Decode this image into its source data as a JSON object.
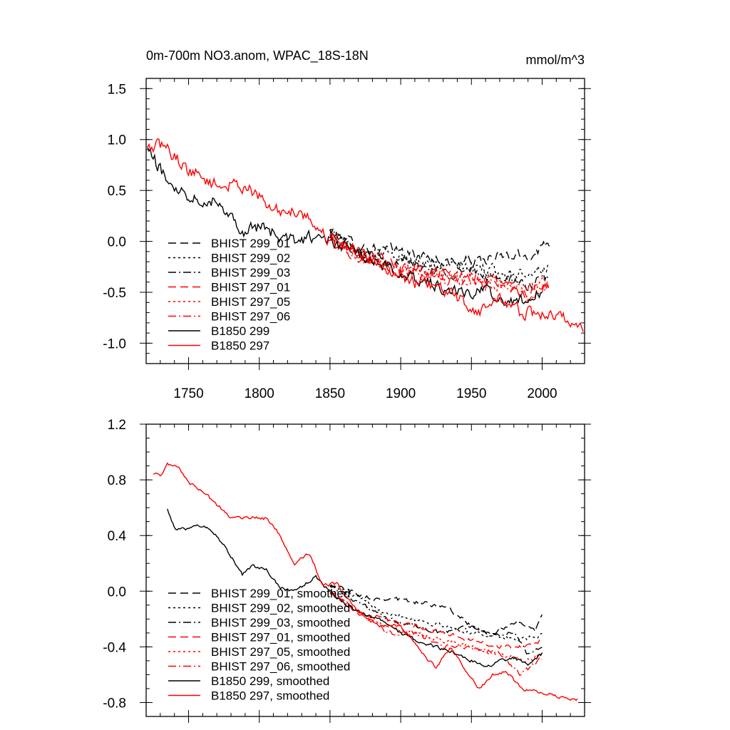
{
  "colors": {
    "black": "#000000",
    "red": "#ff0000"
  },
  "chart_data": [
    {
      "type": "line",
      "title": "0m-700m NO3.anom, WPAC_18S-18N",
      "units": "mmol/m^3",
      "xlim": [
        1720,
        2030
      ],
      "ylim": [
        -1.2,
        1.6
      ],
      "xticks": [
        1750,
        1800,
        1850,
        1900,
        1950,
        2000
      ],
      "yticks": [
        1.5,
        1.0,
        0.5,
        0.0,
        -0.5,
        -1.0
      ],
      "ytick_labels": [
        "1.5",
        "1.0",
        "0.5",
        "0.0",
        "-0.5",
        "-1.0"
      ],
      "legend_position": "bottom-left",
      "series": [
        {
          "name": "BHIST 299_01",
          "color": "#000000",
          "dash": "dash",
          "noise": 0.09,
          "points": [
            [
              1850,
              0.1
            ],
            [
              1870,
              -0.05
            ],
            [
              1900,
              -0.1
            ],
            [
              1930,
              -0.2
            ],
            [
              1950,
              -0.2
            ],
            [
              1970,
              -0.15
            ],
            [
              1990,
              -0.15
            ],
            [
              2005,
              0.0
            ]
          ]
        },
        {
          "name": "BHIST 299_02",
          "color": "#000000",
          "dash": "dot",
          "noise": 0.09,
          "points": [
            [
              1850,
              0.1
            ],
            [
              1870,
              -0.1
            ],
            [
              1900,
              -0.15
            ],
            [
              1930,
              -0.25
            ],
            [
              1950,
              -0.25
            ],
            [
              1970,
              -0.3
            ],
            [
              1990,
              -0.3
            ],
            [
              2005,
              -0.25
            ]
          ]
        },
        {
          "name": "BHIST 299_03",
          "color": "#000000",
          "dash": "dashdot",
          "noise": 0.09,
          "points": [
            [
              1850,
              0.1
            ],
            [
              1870,
              -0.1
            ],
            [
              1900,
              -0.2
            ],
            [
              1930,
              -0.3
            ],
            [
              1950,
              -0.3
            ],
            [
              1970,
              -0.35
            ],
            [
              1990,
              -0.45
            ],
            [
              2005,
              -0.35
            ]
          ]
        },
        {
          "name": "BHIST 297_01",
          "color": "#ff0000",
          "dash": "dash",
          "noise": 0.09,
          "points": [
            [
              1850,
              0.05
            ],
            [
              1870,
              -0.1
            ],
            [
              1900,
              -0.25
            ],
            [
              1930,
              -0.3
            ],
            [
              1950,
              -0.35
            ],
            [
              1970,
              -0.4
            ],
            [
              1990,
              -0.5
            ],
            [
              2005,
              -0.4
            ]
          ]
        },
        {
          "name": "BHIST 297_05",
          "color": "#ff0000",
          "dash": "dot",
          "noise": 0.09,
          "points": [
            [
              1850,
              0.05
            ],
            [
              1870,
              -0.15
            ],
            [
              1900,
              -0.25
            ],
            [
              1930,
              -0.35
            ],
            [
              1950,
              -0.4
            ],
            [
              1970,
              -0.45
            ],
            [
              1990,
              -0.45
            ],
            [
              2005,
              -0.4
            ]
          ]
        },
        {
          "name": "BHIST 297_06",
          "color": "#ff0000",
          "dash": "dashdot",
          "noise": 0.09,
          "points": [
            [
              1850,
              0.05
            ],
            [
              1870,
              -0.15
            ],
            [
              1900,
              -0.3
            ],
            [
              1930,
              -0.35
            ],
            [
              1950,
              -0.4
            ],
            [
              1970,
              -0.4
            ],
            [
              1990,
              -0.55
            ],
            [
              2005,
              -0.45
            ]
          ]
        },
        {
          "name": "B1850 299",
          "color": "#000000",
          "dash": "solid",
          "noise": 0.1,
          "points": [
            [
              1721,
              0.9
            ],
            [
              1735,
              0.6
            ],
            [
              1750,
              0.45
            ],
            [
              1770,
              0.4
            ],
            [
              1790,
              0.1
            ],
            [
              1800,
              0.15
            ],
            [
              1820,
              0.0
            ],
            [
              1840,
              0.05
            ],
            [
              1860,
              -0.05
            ],
            [
              1880,
              -0.2
            ],
            [
              1900,
              -0.3
            ],
            [
              1920,
              -0.4
            ],
            [
              1940,
              -0.5
            ],
            [
              1960,
              -0.5
            ],
            [
              1980,
              -0.6
            ],
            [
              1990,
              -0.55
            ],
            [
              2000,
              -0.5
            ]
          ]
        },
        {
          "name": "B1850 297",
          "color": "#ff0000",
          "dash": "solid",
          "noise": 0.1,
          "points": [
            [
              1721,
              0.9
            ],
            [
              1732,
              0.95
            ],
            [
              1750,
              0.7
            ],
            [
              1770,
              0.55
            ],
            [
              1790,
              0.55
            ],
            [
              1810,
              0.3
            ],
            [
              1830,
              0.3
            ],
            [
              1850,
              0.0
            ],
            [
              1870,
              -0.1
            ],
            [
              1890,
              -0.25
            ],
            [
              1910,
              -0.4
            ],
            [
              1925,
              -0.45
            ],
            [
              1940,
              -0.55
            ],
            [
              1955,
              -0.7
            ],
            [
              1970,
              -0.55
            ],
            [
              1985,
              -0.7
            ],
            [
              2000,
              -0.72
            ],
            [
              2015,
              -0.75
            ],
            [
              2029,
              -0.85
            ]
          ]
        }
      ]
    },
    {
      "type": "line",
      "title": "",
      "units": "",
      "xlim": [
        1720,
        2030
      ],
      "ylim": [
        -0.9,
        1.2
      ],
      "xticks": [
        1750,
        1800,
        1850,
        1900,
        1950,
        2000
      ],
      "yticks": [
        1.2,
        0.8,
        0.4,
        0.0,
        -0.4,
        -0.8
      ],
      "ytick_labels": [
        "1.2",
        "0.8",
        "0.4",
        "0.0",
        "-0.4",
        "-0.8"
      ],
      "legend_position": "bottom-left",
      "series": [
        {
          "name": "BHIST 299_01, smoothed",
          "color": "#000000",
          "dash": "dash",
          "noise": 0.025,
          "points": [
            [
              1850,
              0.05
            ],
            [
              1865,
              0.0
            ],
            [
              1880,
              -0.05
            ],
            [
              1895,
              -0.05
            ],
            [
              1910,
              -0.08
            ],
            [
              1930,
              -0.1
            ],
            [
              1950,
              -0.25
            ],
            [
              1965,
              -0.3
            ],
            [
              1985,
              -0.22
            ],
            [
              1995,
              -0.28
            ],
            [
              2000,
              -0.16
            ]
          ]
        },
        {
          "name": "BHIST 299_02, smoothed",
          "color": "#000000",
          "dash": "dot",
          "noise": 0.025,
          "points": [
            [
              1850,
              0.05
            ],
            [
              1870,
              -0.05
            ],
            [
              1890,
              -0.15
            ],
            [
              1910,
              -0.2
            ],
            [
              1930,
              -0.25
            ],
            [
              1950,
              -0.3
            ],
            [
              1965,
              -0.32
            ],
            [
              1985,
              -0.35
            ],
            [
              2000,
              -0.32
            ]
          ]
        },
        {
          "name": "BHIST 299_03, smoothed",
          "color": "#000000",
          "dash": "dashdot",
          "noise": 0.025,
          "points": [
            [
              1850,
              0.05
            ],
            [
              1870,
              -0.08
            ],
            [
              1890,
              -0.2
            ],
            [
              1910,
              -0.25
            ],
            [
              1930,
              -0.3
            ],
            [
              1950,
              -0.25
            ],
            [
              1965,
              -0.32
            ],
            [
              1980,
              -0.3
            ],
            [
              1990,
              -0.45
            ],
            [
              2000,
              -0.4
            ]
          ]
        },
        {
          "name": "BHIST 297_01, smoothed",
          "color": "#ff0000",
          "dash": "dash",
          "noise": 0.025,
          "points": [
            [
              1850,
              0.0
            ],
            [
              1870,
              -0.15
            ],
            [
              1890,
              -0.2
            ],
            [
              1910,
              -0.25
            ],
            [
              1930,
              -0.3
            ],
            [
              1950,
              -0.35
            ],
            [
              1970,
              -0.4
            ],
            [
              1990,
              -0.4
            ],
            [
              2000,
              -0.35
            ]
          ]
        },
        {
          "name": "BHIST 297_05, smoothed",
          "color": "#ff0000",
          "dash": "dot",
          "noise": 0.025,
          "points": [
            [
              1850,
              0.0
            ],
            [
              1870,
              -0.15
            ],
            [
              1890,
              -0.25
            ],
            [
              1910,
              -0.3
            ],
            [
              1930,
              -0.35
            ],
            [
              1950,
              -0.4
            ],
            [
              1970,
              -0.45
            ],
            [
              1990,
              -0.5
            ],
            [
              2000,
              -0.45
            ]
          ]
        },
        {
          "name": "BHIST 297_06, smoothed",
          "color": "#ff0000",
          "dash": "dashdot",
          "noise": 0.025,
          "points": [
            [
              1850,
              0.0
            ],
            [
              1870,
              -0.15
            ],
            [
              1890,
              -0.3
            ],
            [
              1910,
              -0.3
            ],
            [
              1930,
              -0.4
            ],
            [
              1950,
              -0.4
            ],
            [
              1970,
              -0.45
            ],
            [
              1985,
              -0.6
            ],
            [
              2000,
              -0.48
            ]
          ]
        },
        {
          "name": "B1850 299, smoothed",
          "color": "#000000",
          "dash": "solid",
          "noise": 0.02,
          "points": [
            [
              1735,
              0.6
            ],
            [
              1740,
              0.45
            ],
            [
              1750,
              0.45
            ],
            [
              1760,
              0.47
            ],
            [
              1770,
              0.4
            ],
            [
              1780,
              0.25
            ],
            [
              1788,
              0.12
            ],
            [
              1795,
              0.18
            ],
            [
              1805,
              0.15
            ],
            [
              1815,
              0.02
            ],
            [
              1825,
              0.0
            ],
            [
              1840,
              0.1
            ],
            [
              1855,
              -0.05
            ],
            [
              1870,
              -0.15
            ],
            [
              1885,
              -0.2
            ],
            [
              1900,
              -0.3
            ],
            [
              1910,
              -0.35
            ],
            [
              1925,
              -0.4
            ],
            [
              1940,
              -0.45
            ],
            [
              1950,
              -0.5
            ],
            [
              1960,
              -0.55
            ],
            [
              1970,
              -0.5
            ],
            [
              1980,
              -0.48
            ],
            [
              1990,
              -0.52
            ],
            [
              2000,
              -0.45
            ]
          ]
        },
        {
          "name": "B1850 297, smoothed",
          "color": "#ff0000",
          "dash": "solid",
          "noise": 0.02,
          "points": [
            [
              1725,
              0.85
            ],
            [
              1730,
              0.83
            ],
            [
              1735,
              0.92
            ],
            [
              1742,
              0.9
            ],
            [
              1750,
              0.78
            ],
            [
              1760,
              0.72
            ],
            [
              1770,
              0.62
            ],
            [
              1780,
              0.53
            ],
            [
              1795,
              0.53
            ],
            [
              1805,
              0.52
            ],
            [
              1815,
              0.4
            ],
            [
              1825,
              0.2
            ],
            [
              1835,
              0.27
            ],
            [
              1845,
              0.05
            ],
            [
              1855,
              0.05
            ],
            [
              1870,
              -0.15
            ],
            [
              1885,
              -0.25
            ],
            [
              1900,
              -0.25
            ],
            [
              1915,
              -0.45
            ],
            [
              1925,
              -0.55
            ],
            [
              1935,
              -0.4
            ],
            [
              1945,
              -0.55
            ],
            [
              1955,
              -0.7
            ],
            [
              1965,
              -0.6
            ],
            [
              1975,
              -0.58
            ],
            [
              1985,
              -0.7
            ],
            [
              2000,
              -0.73
            ],
            [
              2010,
              -0.75
            ],
            [
              2020,
              -0.77
            ],
            [
              2025,
              -0.78
            ]
          ]
        }
      ]
    }
  ]
}
